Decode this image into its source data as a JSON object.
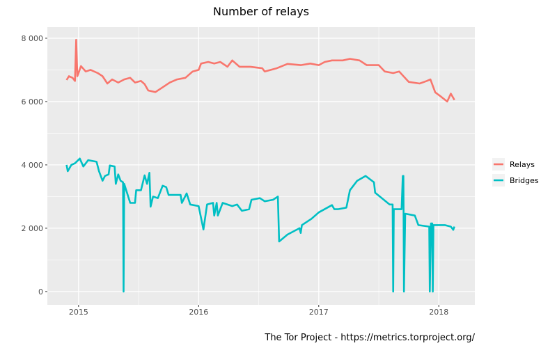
{
  "chart_data": {
    "type": "line",
    "title": "Number of relays",
    "caption": "The Tor Project - https://metrics.torproject.org/",
    "xlabel": "",
    "ylabel": "",
    "xlim": [
      2014.74,
      2018.3
    ],
    "ylim": [
      -420,
      8350
    ],
    "x_ticks": [
      {
        "value": 2015,
        "label": "2015"
      },
      {
        "value": 2016,
        "label": "2016"
      },
      {
        "value": 2017,
        "label": "2017"
      },
      {
        "value": 2018,
        "label": "2018"
      }
    ],
    "y_ticks": [
      {
        "value": 0,
        "label": "0"
      },
      {
        "value": 2000,
        "label": "2 000"
      },
      {
        "value": 4000,
        "label": "4 000"
      },
      {
        "value": 6000,
        "label": "6 000"
      },
      {
        "value": 8000,
        "label": "8 000"
      }
    ],
    "grid": true,
    "legend_position": "right",
    "series": [
      {
        "name": "Relays",
        "color": "#F8766D",
        "points": [
          [
            2014.9,
            6680
          ],
          [
            2014.92,
            6800
          ],
          [
            2014.95,
            6750
          ],
          [
            2014.97,
            6650
          ],
          [
            2014.98,
            7950
          ],
          [
            2014.99,
            6800
          ],
          [
            2015.02,
            7120
          ],
          [
            2015.06,
            6950
          ],
          [
            2015.1,
            7000
          ],
          [
            2015.16,
            6900
          ],
          [
            2015.2,
            6800
          ],
          [
            2015.24,
            6570
          ],
          [
            2015.28,
            6700
          ],
          [
            2015.33,
            6600
          ],
          [
            2015.38,
            6700
          ],
          [
            2015.43,
            6750
          ],
          [
            2015.47,
            6600
          ],
          [
            2015.52,
            6650
          ],
          [
            2015.55,
            6550
          ],
          [
            2015.58,
            6350
          ],
          [
            2015.64,
            6300
          ],
          [
            2015.7,
            6450
          ],
          [
            2015.76,
            6600
          ],
          [
            2015.82,
            6700
          ],
          [
            2015.89,
            6750
          ],
          [
            2015.95,
            6950
          ],
          [
            2016.0,
            7000
          ],
          [
            2016.02,
            7200
          ],
          [
            2016.08,
            7250
          ],
          [
            2016.13,
            7200
          ],
          [
            2016.18,
            7250
          ],
          [
            2016.24,
            7100
          ],
          [
            2016.28,
            7300
          ],
          [
            2016.34,
            7100
          ],
          [
            2016.43,
            7100
          ],
          [
            2016.53,
            7050
          ],
          [
            2016.55,
            6950
          ],
          [
            2016.65,
            7050
          ],
          [
            2016.74,
            7190
          ],
          [
            2016.85,
            7150
          ],
          [
            2016.93,
            7200
          ],
          [
            2017.0,
            7150
          ],
          [
            2017.05,
            7250
          ],
          [
            2017.11,
            7300
          ],
          [
            2017.2,
            7300
          ],
          [
            2017.26,
            7350
          ],
          [
            2017.34,
            7300
          ],
          [
            2017.4,
            7150
          ],
          [
            2017.5,
            7150
          ],
          [
            2017.55,
            6950
          ],
          [
            2017.62,
            6900
          ],
          [
            2017.67,
            6950
          ],
          [
            2017.75,
            6620
          ],
          [
            2017.84,
            6570
          ],
          [
            2017.9,
            6650
          ],
          [
            2017.93,
            6700
          ],
          [
            2017.97,
            6290
          ],
          [
            2018.02,
            6150
          ],
          [
            2018.07,
            6000
          ],
          [
            2018.1,
            6250
          ],
          [
            2018.13,
            6050
          ]
        ]
      },
      {
        "name": "Bridges",
        "color": "#00BFC4",
        "points": [
          [
            2014.9,
            4000
          ],
          [
            2014.91,
            3800
          ],
          [
            2014.94,
            4000
          ],
          [
            2014.97,
            4050
          ],
          [
            2015.01,
            4200
          ],
          [
            2015.04,
            3950
          ],
          [
            2015.08,
            4150
          ],
          [
            2015.15,
            4100
          ],
          [
            2015.17,
            3800
          ],
          [
            2015.2,
            3500
          ],
          [
            2015.22,
            3650
          ],
          [
            2015.25,
            3700
          ],
          [
            2015.26,
            3980
          ],
          [
            2015.3,
            3950
          ],
          [
            2015.31,
            3400
          ],
          [
            2015.33,
            3700
          ],
          [
            2015.35,
            3500
          ],
          [
            2015.37,
            3450
          ],
          [
            2015.375,
            0
          ],
          [
            2015.38,
            3400
          ],
          [
            2015.43,
            2800
          ],
          [
            2015.47,
            2800
          ],
          [
            2015.48,
            3200
          ],
          [
            2015.52,
            3200
          ],
          [
            2015.55,
            3670
          ],
          [
            2015.57,
            3400
          ],
          [
            2015.59,
            3750
          ],
          [
            2015.6,
            2680
          ],
          [
            2015.62,
            3000
          ],
          [
            2015.66,
            2950
          ],
          [
            2015.7,
            3340
          ],
          [
            2015.73,
            3300
          ],
          [
            2015.75,
            3050
          ],
          [
            2015.85,
            3050
          ],
          [
            2015.86,
            2800
          ],
          [
            2015.9,
            3100
          ],
          [
            2015.93,
            2750
          ],
          [
            2016.0,
            2700
          ],
          [
            2016.04,
            1960
          ],
          [
            2016.07,
            2750
          ],
          [
            2016.12,
            2800
          ],
          [
            2016.13,
            2400
          ],
          [
            2016.15,
            2800
          ],
          [
            2016.16,
            2400
          ],
          [
            2016.2,
            2800
          ],
          [
            2016.28,
            2700
          ],
          [
            2016.32,
            2750
          ],
          [
            2016.36,
            2550
          ],
          [
            2016.42,
            2600
          ],
          [
            2016.44,
            2900
          ],
          [
            2016.51,
            2950
          ],
          [
            2016.55,
            2850
          ],
          [
            2016.62,
            2900
          ],
          [
            2016.66,
            3000
          ],
          [
            2016.67,
            1580
          ],
          [
            2016.74,
            1800
          ],
          [
            2016.84,
            2000
          ],
          [
            2016.85,
            1850
          ],
          [
            2016.86,
            2100
          ],
          [
            2016.94,
            2300
          ],
          [
            2017.0,
            2500
          ],
          [
            2017.11,
            2730
          ],
          [
            2017.13,
            2600
          ],
          [
            2017.16,
            2600
          ],
          [
            2017.23,
            2650
          ],
          [
            2017.26,
            3200
          ],
          [
            2017.32,
            3500
          ],
          [
            2017.39,
            3650
          ],
          [
            2017.46,
            3450
          ],
          [
            2017.47,
            3120
          ],
          [
            2017.59,
            2750
          ],
          [
            2017.615,
            2750
          ],
          [
            2017.62,
            0
          ],
          [
            2017.625,
            2600
          ],
          [
            2017.69,
            2600
          ],
          [
            2017.7,
            3650
          ],
          [
            2017.705,
            3650
          ],
          [
            2017.71,
            0
          ],
          [
            2017.72,
            2460
          ],
          [
            2017.8,
            2400
          ],
          [
            2017.83,
            2100
          ],
          [
            2017.92,
            2050
          ],
          [
            2017.925,
            0
          ],
          [
            2017.935,
            2150
          ],
          [
            2017.945,
            2150
          ],
          [
            2017.95,
            0
          ],
          [
            2017.955,
            2100
          ],
          [
            2018.0,
            2100
          ],
          [
            2018.05,
            2100
          ],
          [
            2018.1,
            2050
          ],
          [
            2018.12,
            1950
          ],
          [
            2018.13,
            2050
          ]
        ]
      }
    ]
  }
}
